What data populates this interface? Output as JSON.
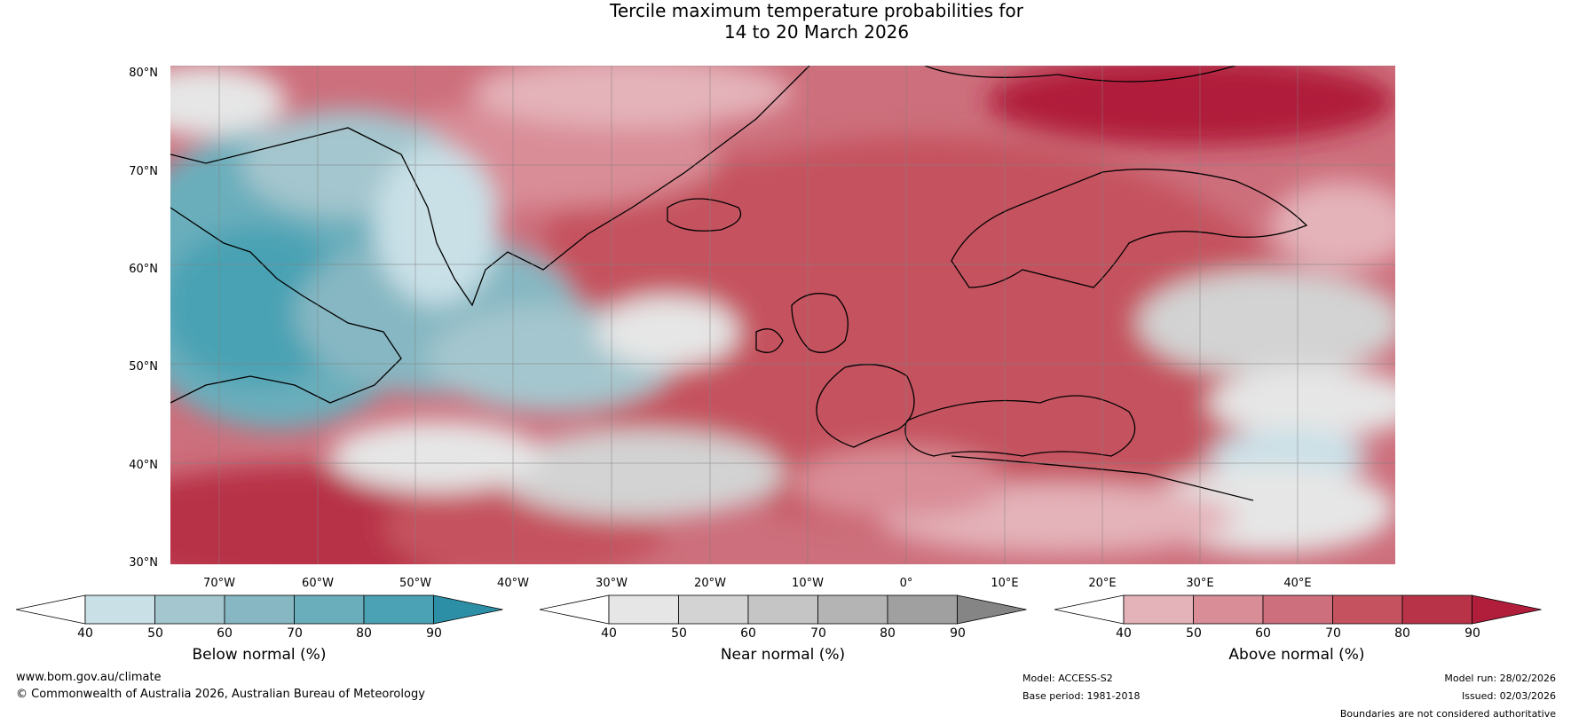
{
  "title": {
    "line1": "Tercile maximum temperature probabilities for",
    "line2": "14 to 20 March 2026"
  },
  "axes": {
    "lat_labels": [
      "80°N",
      "70°N",
      "60°N",
      "50°N",
      "40°N",
      "30°N"
    ],
    "lon_labels": [
      "70°W",
      "60°W",
      "50°W",
      "40°W",
      "30°W",
      "20°W",
      "10°W",
      "0°",
      "10°E",
      "20°E",
      "30°E",
      "40°E"
    ]
  },
  "colorbars": [
    {
      "label": "Below normal (%)",
      "ticks": [
        "40",
        "50",
        "60",
        "70",
        "80",
        "90"
      ],
      "colors": [
        "#c9e0e7",
        "#a4c6ce",
        "#86b7c2",
        "#6aaebc",
        "#4aa2b4",
        "#2d8fa6"
      ]
    },
    {
      "label": "Near normal (%)",
      "ticks": [
        "40",
        "50",
        "60",
        "70",
        "80",
        "90"
      ],
      "colors": [
        "#e6e6e6",
        "#d3d3d3",
        "#c5c5c5",
        "#b3b4b3",
        "#a0a0a0",
        "#858585"
      ]
    },
    {
      "label": "Above normal (%)",
      "ticks": [
        "40",
        "50",
        "60",
        "70",
        "80",
        "90"
      ],
      "colors": [
        "#e4b2b9",
        "#d98d97",
        "#cd6f7c",
        "#c5525f",
        "#b83347",
        "#b01e3b"
      ]
    }
  ],
  "footer": {
    "website": "www.bom.gov.au/climate",
    "copyright": "© Commonwealth of Australia 2026, Australian Bureau of Meteorology",
    "model": "Model: ACCESS-S2",
    "base_period": "Base period: 1981-2018",
    "model_run": "Model run: 28/02/2026",
    "issued": "Issued: 02/03/2026",
    "disclaimer": "Boundaries are not considered authoritative"
  }
}
